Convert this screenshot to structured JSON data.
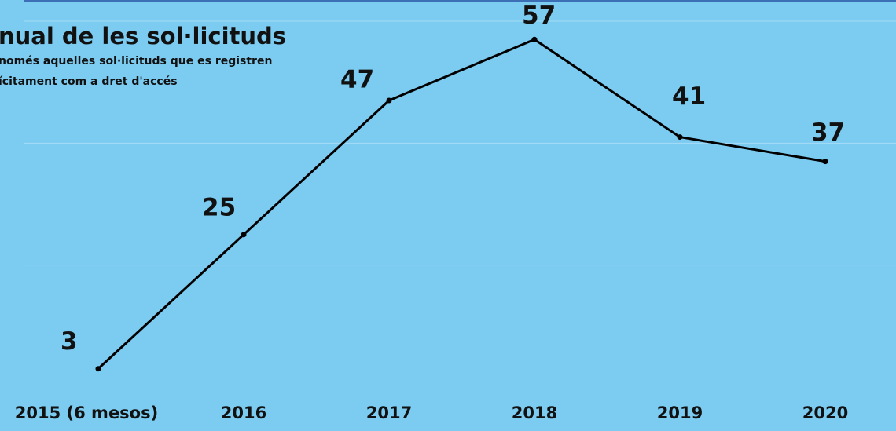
{
  "chart_data": {
    "type": "line",
    "title": "nual de les sol·licituds",
    "subtitle": [
      "només aquelles sol·licituds que es registren",
      "ícitament com a dret d'accés"
    ],
    "categories": [
      "2015 (6 mesos)",
      "2016",
      "2017",
      "2018",
      "2019",
      "2020"
    ],
    "values": [
      3,
      25,
      47,
      57,
      41,
      37
    ],
    "color": "#000000",
    "ylim": [
      0,
      60
    ],
    "yticks": [
      20,
      40,
      60
    ],
    "grid": true
  }
}
